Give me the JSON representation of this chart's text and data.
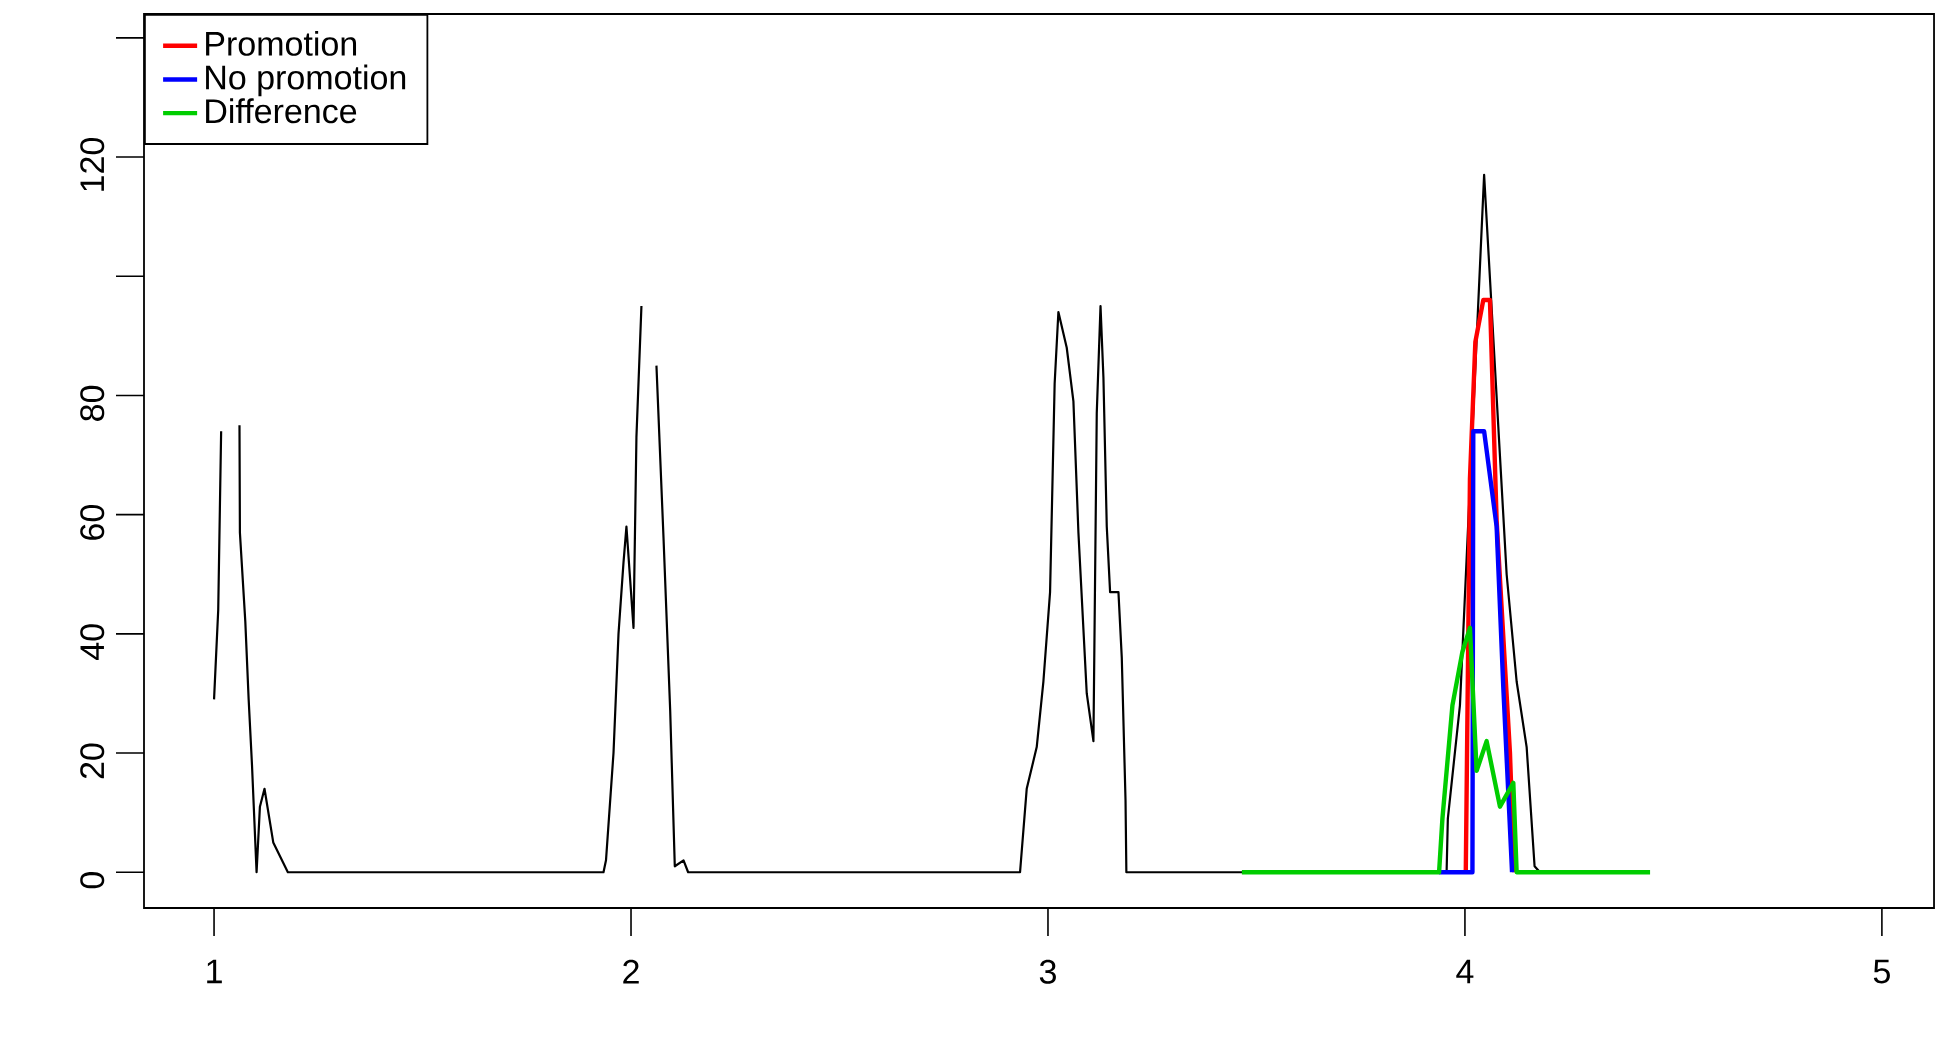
{
  "chart_data": {
    "type": "line",
    "xlim": [
      0.832,
      5.125
    ],
    "ylim": [
      -6,
      144
    ],
    "xticks": [
      1,
      2,
      3,
      4,
      5
    ],
    "yticks": [
      0,
      20,
      40,
      60,
      80,
      {
        "value": 100,
        "label": null
      },
      120,
      {
        "value": 140,
        "label": null
      }
    ],
    "legend": "top left",
    "grid": false,
    "marker": "none",
    "line_style": "solid",
    "series": [
      {
        "color": "#000000",
        "x": [
          1.0,
          1.01,
          1.017,
          1.03,
          1.061,
          1.062,
          1.075,
          1.083,
          1.091,
          1.102,
          1.11,
          1.121,
          1.142,
          1.177,
          1.934,
          1.94,
          1.958,
          1.97,
          1.982,
          1.989,
          1.998,
          2.006,
          2.013,
          2.025,
          2.035,
          2.061,
          2.078,
          2.094,
          2.105,
          2.126,
          2.137,
          2.933,
          2.949,
          2.973,
          2.989,
          3.005,
          3.016,
          3.025,
          3.045,
          3.061,
          3.073,
          3.093,
          3.109,
          3.117,
          3.126,
          3.133,
          3.141,
          3.149,
          3.169,
          3.177,
          3.186,
          3.188,
          3.956,
          3.959,
          3.988,
          4.046,
          4.1,
          4.124,
          4.148,
          4.167,
          4.18
        ],
        "values": [
          29,
          44,
          74,
          null,
          75,
          57,
          42,
          29,
          18,
          0,
          11,
          14,
          5,
          0,
          0,
          2,
          20,
          40,
          52,
          58,
          49,
          41,
          73,
          95,
          null,
          85,
          56,
          27,
          1,
          2,
          0,
          0,
          14,
          21,
          32,
          47,
          82,
          94,
          88,
          79,
          57,
          30,
          22,
          77,
          95,
          83,
          58,
          47,
          47,
          36,
          12,
          0,
          0,
          9,
          28,
          117,
          50,
          32,
          21,
          1,
          0
        ]
      },
      {
        "name": "Promotion",
        "color": "#ff0000",
        "x": [
          4.002,
          4.012,
          4.025,
          4.044,
          4.06,
          4.076,
          4.108,
          4.118
        ],
        "values": [
          0,
          66,
          89,
          96,
          96,
          59,
          20,
          0
        ]
      },
      {
        "name": "No promotion",
        "color": "#0000ff",
        "x": [
          3.938,
          4.018,
          4.02,
          4.046,
          4.076,
          4.092,
          4.113
        ],
        "values": [
          0,
          0,
          74,
          74,
          58,
          31,
          0
        ]
      },
      {
        "name": "Difference",
        "color": "#00cd00",
        "x": [
          3.465,
          3.938,
          3.946,
          3.97,
          3.994,
          4.012,
          4.028,
          4.052,
          4.084,
          4.116,
          4.124,
          4.444
        ],
        "values": [
          0,
          0,
          9,
          28,
          37,
          41,
          17,
          22,
          11,
          15,
          0,
          0
        ]
      }
    ]
  }
}
